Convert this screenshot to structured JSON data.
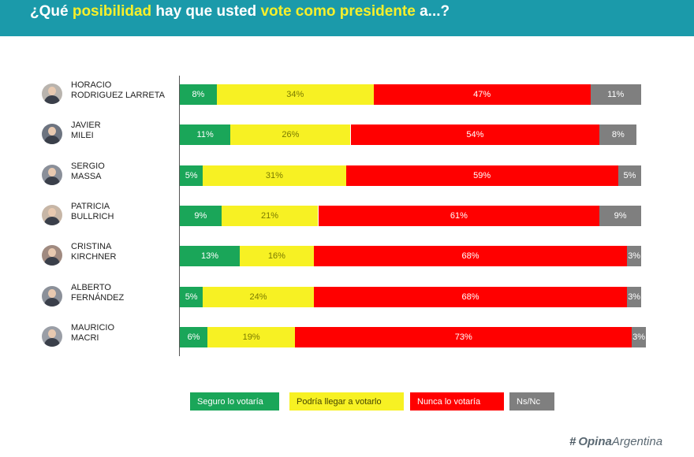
{
  "title": {
    "part1": "¿Qué ",
    "highlight1": "posibilidad",
    "part2": " hay que usted ",
    "highlight2": "vote como presidente",
    "part3": " a...?"
  },
  "colors": {
    "header": "#1b9aaa",
    "seguro": "#1aa659",
    "podria": "#f7f123",
    "nunca": "#ff0000",
    "nsnc": "#7f7f7f"
  },
  "chart_data": {
    "type": "bar",
    "stacked": true,
    "orientation": "horizontal",
    "categories": [
      [
        "HORACIO",
        "RODRIGUEZ LARRETA"
      ],
      [
        "JAVIER",
        "MILEI"
      ],
      [
        "SERGIO",
        "MASSA"
      ],
      [
        "PATRICIA",
        "BULLRICH"
      ],
      [
        "CRISTINA",
        "KIRCHNER"
      ],
      [
        "ALBERTO",
        "FERNÁNDEZ"
      ],
      [
        "MAURICIO",
        "MACRI"
      ]
    ],
    "series": [
      {
        "name": "Seguro lo votaría",
        "color_key": "seguro",
        "values": [
          8,
          11,
          5,
          9,
          13,
          5,
          6
        ]
      },
      {
        "name": "Podría llegar a votarlo",
        "color_key": "podria",
        "values": [
          34,
          26,
          31,
          21,
          16,
          24,
          19
        ]
      },
      {
        "name": "Nunca lo votaría",
        "color_key": "nunca",
        "values": [
          47,
          54,
          59,
          61,
          68,
          68,
          73
        ]
      },
      {
        "name": "Ns/Nc",
        "color_key": "nsnc",
        "values": [
          11,
          8,
          5,
          9,
          3,
          3,
          3
        ]
      }
    ],
    "value_suffix": "%",
    "legend_position": "bottom",
    "grid": false
  },
  "brand": {
    "hash": "#",
    "bold": "Opina",
    "light": "Argentina"
  }
}
